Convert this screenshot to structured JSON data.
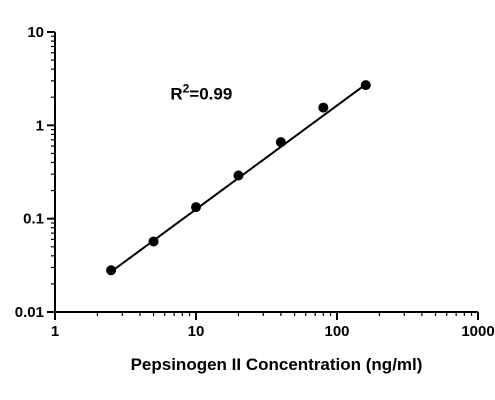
{
  "chart_data": {
    "type": "scatter",
    "title": "",
    "xlabel": "Pepsinogen II Concentration (ng/ml)",
    "ylabel": "",
    "xscale": "log",
    "yscale": "log",
    "xlim": [
      1,
      1000
    ],
    "ylim": [
      0.01,
      10
    ],
    "x_ticks": [
      1,
      10,
      100,
      1000
    ],
    "x_tick_labels": [
      "1",
      "10",
      "100",
      "1000"
    ],
    "y_ticks": [
      0.01,
      0.1,
      1,
      10
    ],
    "y_tick_labels": [
      "0.01",
      "0.1",
      "1",
      "10"
    ],
    "grid": false,
    "series": [
      {
        "x": [
          2.5,
          5,
          10,
          20,
          40,
          80,
          160
        ],
        "y": [
          0.028,
          0.057,
          0.133,
          0.29,
          0.66,
          1.55,
          2.7
        ]
      }
    ],
    "fit_line": {
      "x": [
        2.5,
        160
      ],
      "y": [
        0.027,
        2.75
      ]
    },
    "annotation": {
      "text_main": "R",
      "superscript": "2",
      "text_rest": "=0.99",
      "at": [
        8,
        2.2
      ]
    }
  }
}
